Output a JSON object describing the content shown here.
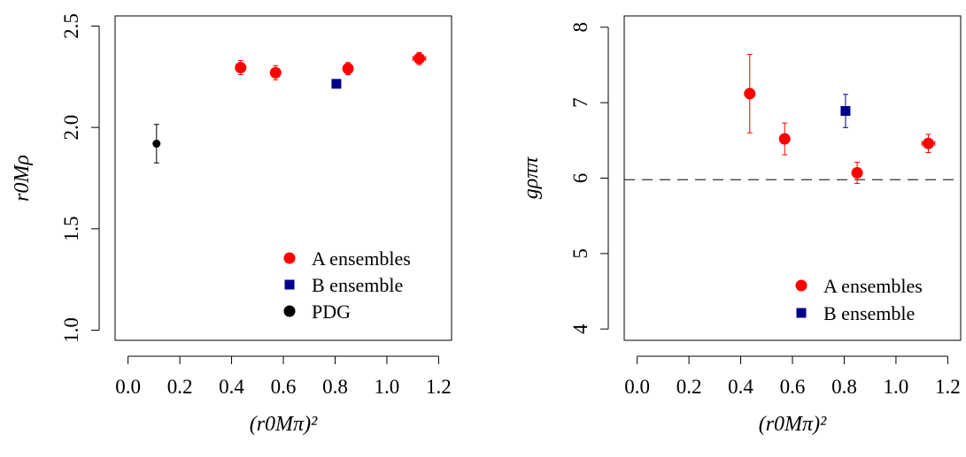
{
  "chart_data": [
    {
      "type": "scatter",
      "xlabel": "(r0Mπ)²",
      "ylabel": "r0Mρ",
      "xlim": [
        -0.05,
        1.25
      ],
      "ylim": [
        0.95,
        2.55
      ],
      "x_ticks": [
        "0.0",
        "0.2",
        "0.4",
        "0.6",
        "0.8",
        "1.0",
        "1.2"
      ],
      "y_ticks": [
        "1.0",
        "1.5",
        "2.0",
        "2.5"
      ],
      "legend_position": "bottom-right",
      "series": [
        {
          "name": "A ensembles",
          "color": "#ff0000",
          "marker": "circle",
          "points": [
            {
              "x": 0.435,
              "y": 2.295,
              "xerr": 0.01,
              "yerr": 0.035
            },
            {
              "x": 0.57,
              "y": 2.27,
              "xerr": 0.01,
              "yerr": 0.035
            },
            {
              "x": 0.85,
              "y": 2.29,
              "xerr": 0.015,
              "yerr": 0.03
            },
            {
              "x": 1.125,
              "y": 2.34,
              "xerr": 0.025,
              "yerr": 0.03
            }
          ]
        },
        {
          "name": "B ensemble",
          "color": "#00008b",
          "marker": "square",
          "points": [
            {
              "x": 0.805,
              "y": 2.215,
              "xerr": 0.0,
              "yerr": 0.015
            }
          ]
        },
        {
          "name": "PDG",
          "color": "#000000",
          "marker": "circle-small",
          "points": [
            {
              "x": 0.11,
              "y": 1.92,
              "xerr": 0.0,
              "yerr": 0.095
            }
          ]
        }
      ]
    },
    {
      "type": "scatter",
      "xlabel": "(r0Mπ)²",
      "ylabel": "gρππ",
      "xlim": [
        -0.05,
        1.25
      ],
      "ylim": [
        3.85,
        8.15
      ],
      "x_ticks": [
        "0.0",
        "0.2",
        "0.4",
        "0.6",
        "0.8",
        "1.0",
        "1.2"
      ],
      "y_ticks": [
        "4",
        "5",
        "6",
        "7",
        "8"
      ],
      "legend_position": "bottom-right",
      "reference_line": {
        "y": 5.98,
        "style": "dashed"
      },
      "series": [
        {
          "name": "A ensembles",
          "color": "#ff0000",
          "marker": "circle",
          "points": [
            {
              "x": 0.435,
              "y": 7.12,
              "xerr": 0.0,
              "yerr": 0.52
            },
            {
              "x": 0.57,
              "y": 6.52,
              "xerr": 0.0,
              "yerr": 0.21
            },
            {
              "x": 0.85,
              "y": 6.07,
              "xerr": 0.015,
              "yerr": 0.14
            },
            {
              "x": 1.125,
              "y": 6.46,
              "xerr": 0.025,
              "yerr": 0.12
            }
          ]
        },
        {
          "name": "B ensemble",
          "color": "#00008b",
          "marker": "square",
          "points": [
            {
              "x": 0.805,
              "y": 6.89,
              "xerr": 0.0,
              "yerr": 0.22
            }
          ]
        }
      ]
    }
  ]
}
